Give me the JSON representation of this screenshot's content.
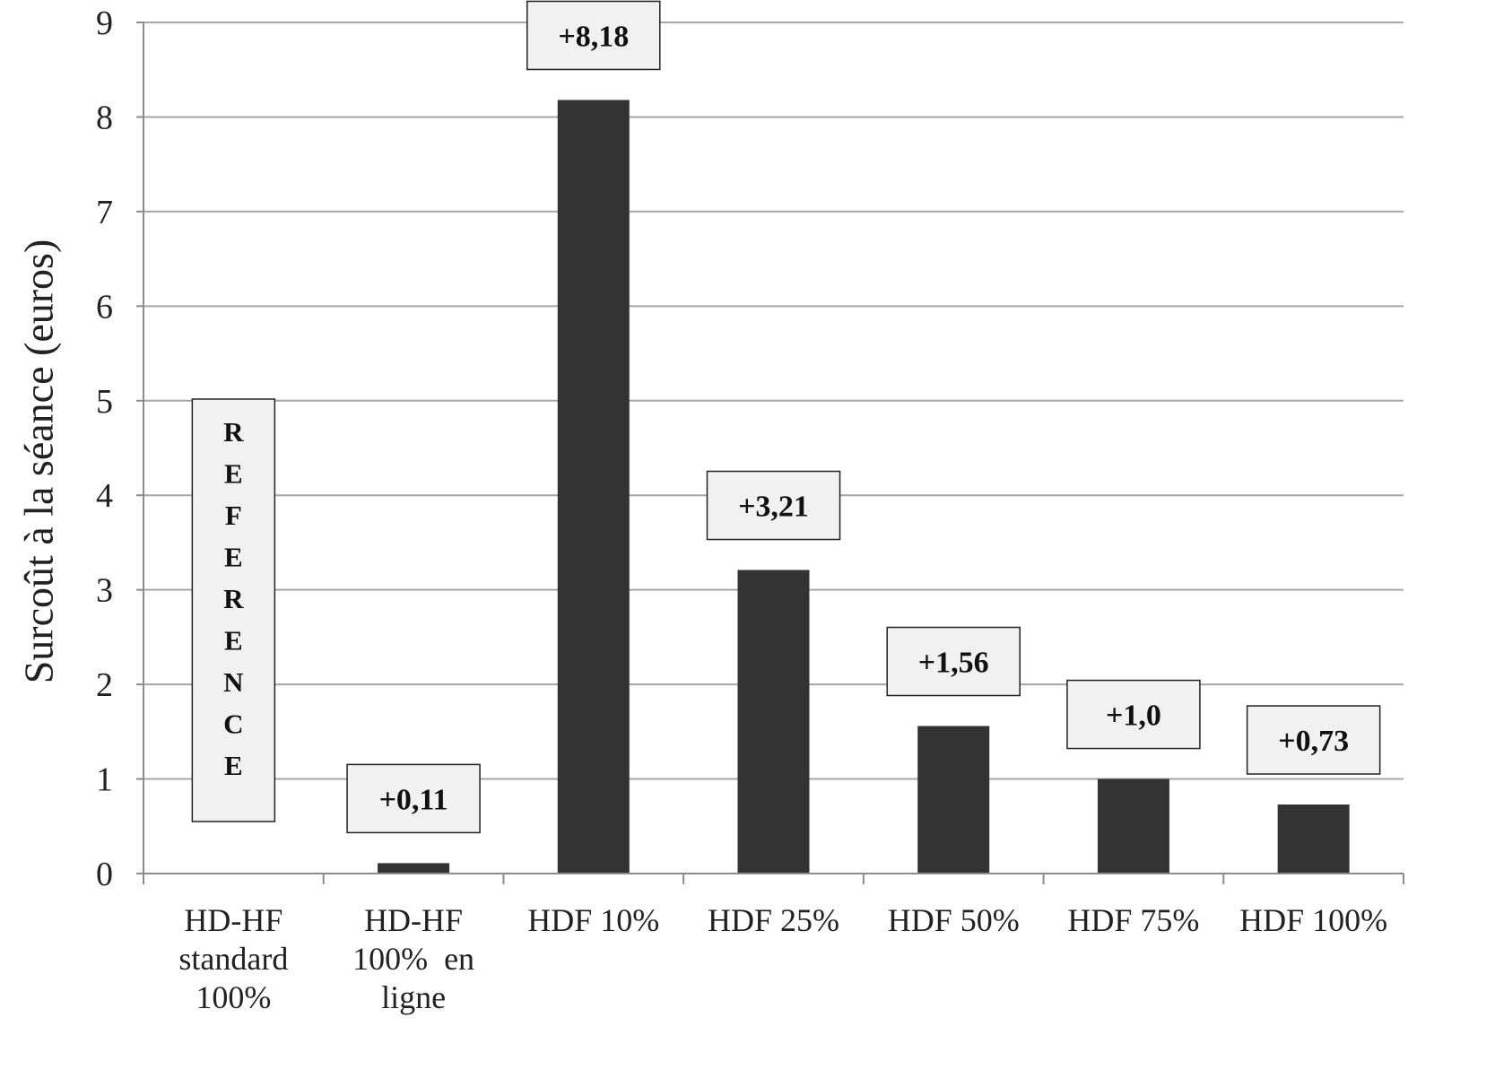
{
  "chart_data": {
    "type": "bar",
    "title": "",
    "ylabel": "Surcoût à la séance (euros)",
    "xlabel": "",
    "ylim": [
      0,
      9
    ],
    "yticks": [
      "0",
      "1",
      "2",
      "3",
      "4",
      "5",
      "6",
      "7",
      "8",
      "9"
    ],
    "grid": true,
    "legend": "none",
    "categories": [
      [
        "HD-HF",
        "standard",
        "100%"
      ],
      [
        "HD-HF",
        "100%  en",
        "ligne"
      ],
      [
        "HDF 10%"
      ],
      [
        "HDF 25%"
      ],
      [
        "HDF 50%"
      ],
      [
        "HDF 75%"
      ],
      [
        "HDF 100%"
      ]
    ],
    "values": [
      null,
      0.11,
      8.18,
      3.21,
      1.56,
      1.0,
      0.73
    ],
    "annotations": [
      {
        "category_index": 1,
        "text": "+0,11"
      },
      {
        "category_index": 2,
        "text": "+8,18"
      },
      {
        "category_index": 3,
        "text": "+3,21"
      },
      {
        "category_index": 4,
        "text": "+1,56"
      },
      {
        "category_index": 5,
        "text": "+1,0"
      },
      {
        "category_index": 6,
        "text": "+0,73"
      }
    ],
    "reference": {
      "category_index": 0,
      "text": "REFERENCE",
      "letters": [
        "R",
        "E",
        "F",
        "E",
        "R",
        "E",
        "N",
        "C",
        "E"
      ]
    },
    "colors": {
      "bar": "#333333",
      "grid": "#a6a6a6",
      "axis": "#8c8c8c",
      "label_box_fill": "#f0f1f0",
      "label_box_stroke": "#222222",
      "text": "#222222"
    }
  }
}
